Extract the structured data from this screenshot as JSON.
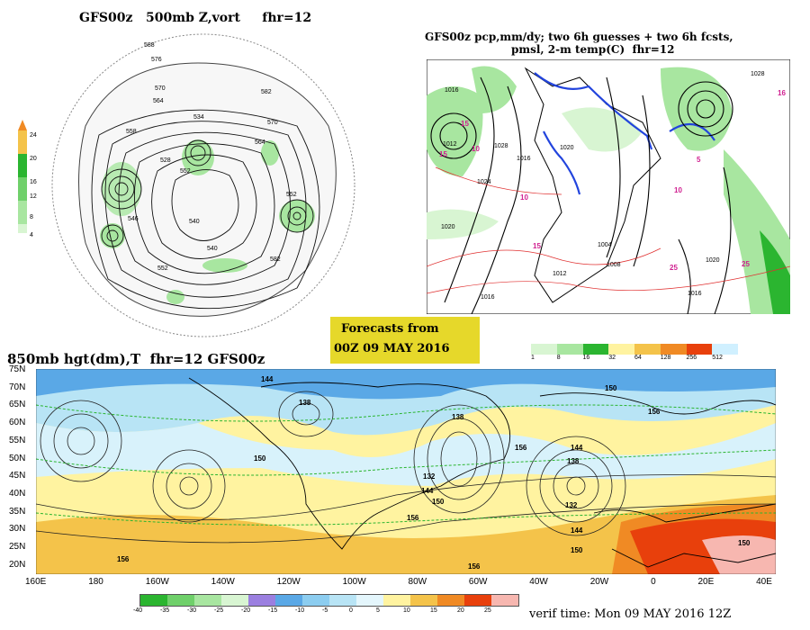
{
  "panel_500mb": {
    "title": "GFS00z   500mb Z,vort     fhr=12",
    "colorbar": [
      "4",
      "8",
      "12",
      "16",
      "20",
      "24"
    ],
    "contour_labels": [
      "588",
      "576",
      "570",
      "564",
      "558",
      "552",
      "534",
      "528",
      "540",
      "546",
      "582",
      "570",
      "564",
      "552",
      "540",
      "552",
      "582"
    ]
  },
  "panel_precip": {
    "title_line1": "GFS00z pcp,mm/dy; two 6h guesses + two 6h fcsts,",
    "title_line2": "pmsl, 2-m temp(C)  fhr=12",
    "isobar_labels": [
      "1016",
      "1012",
      "1028",
      "1024",
      "1020",
      "1016",
      "1020",
      "1004",
      "1008",
      "1012",
      "1016",
      "1020",
      "1016",
      "1028"
    ],
    "temp_labels": [
      "15",
      "10",
      "10",
      "15",
      "5",
      "10",
      "25",
      "25",
      "16",
      "15"
    ],
    "colorbar": [
      "1",
      "8",
      "16",
      "32",
      "64",
      "128",
      "256",
      "512"
    ]
  },
  "forecast_box": {
    "line1": "Forecasts from",
    "line2": "00Z 09 MAY 2016"
  },
  "panel_850mb": {
    "title": "850mb hgt(dm),T  fhr=12 GFS00z",
    "lat_labels": [
      "75N",
      "70N",
      "65N",
      "60N",
      "55N",
      "50N",
      "45N",
      "40N",
      "35N",
      "30N",
      "25N",
      "20N"
    ],
    "lon_labels": [
      "160E",
      "180",
      "160W",
      "140W",
      "120W",
      "100W",
      "80W",
      "60W",
      "40W",
      "20W",
      "0",
      "20E",
      "40E"
    ],
    "height_labels": [
      "144",
      "138",
      "150",
      "138",
      "156",
      "132",
      "144",
      "150",
      "156",
      "150",
      "144",
      "138",
      "132",
      "156",
      "150",
      "132",
      "156",
      "150",
      "156"
    ],
    "colorbar": [
      "-40",
      "-35",
      "-30",
      "-25",
      "-20",
      "-15",
      "-10",
      "-5",
      "0",
      "5",
      "10",
      "15",
      "20",
      "25"
    ]
  },
  "verif_time": "verif time: Mon 09 MAY 2016 12Z",
  "colors": {
    "forecast_box_bg": "#e6d82a",
    "green_dark": "#2bb530",
    "green_light": "#a8e6a0",
    "orange": "#f08a24",
    "red": "#e8400c",
    "pale_yellow": "#fff3a0",
    "light_blue": "#b8e4f5",
    "blue": "#5aa8e6"
  }
}
